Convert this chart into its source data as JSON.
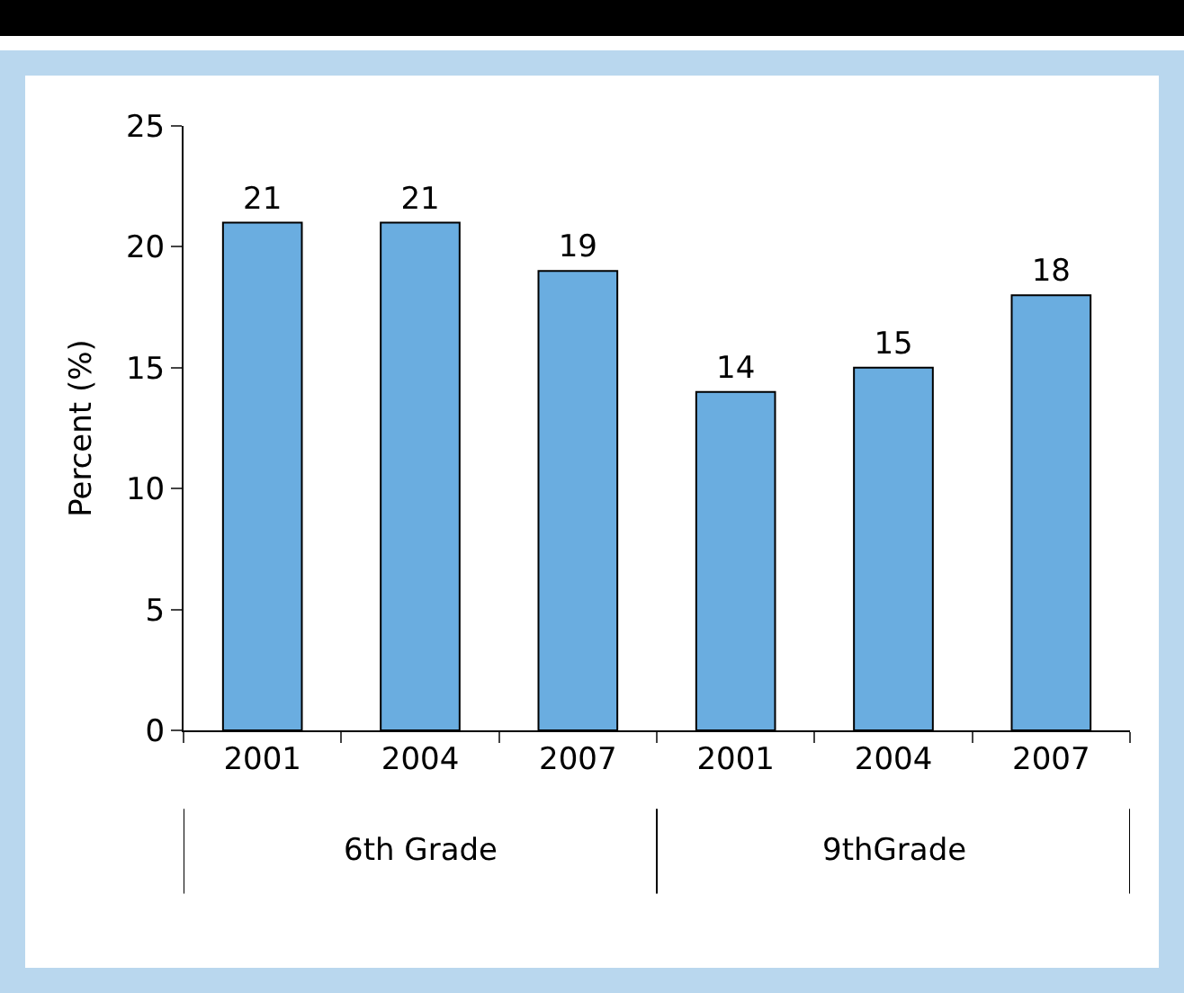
{
  "chart_data": {
    "type": "bar",
    "ylabel": "Percent (%)",
    "categories": [
      "2001",
      "2004",
      "2007",
      "2001",
      "2004",
      "2007"
    ],
    "values": [
      21,
      21,
      19,
      14,
      15,
      18
    ],
    "color": "#6aade0",
    "ylim": [
      0,
      25
    ],
    "yticks": [
      0,
      5,
      10,
      15,
      20,
      25
    ],
    "grid": false,
    "data_labels": true,
    "annotations": [
      "6th Grade",
      "9thGrade"
    ]
  }
}
